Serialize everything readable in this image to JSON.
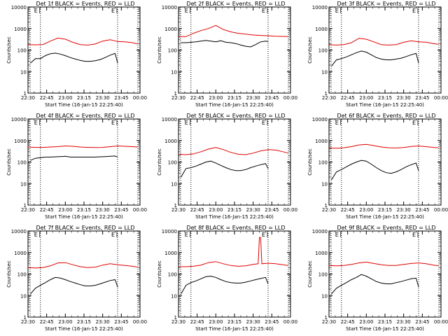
{
  "shared": {
    "ylabel": "Counts/sec",
    "xlabel": "Start Time (16-Jan-15 22:25:40)",
    "xticks": [
      "22:30",
      "22:45",
      "23:00",
      "23:15",
      "23:30",
      "23:45",
      "00:00"
    ],
    "yticks": [
      "1",
      "10",
      "100",
      "1000",
      "10000"
    ],
    "flag_label": "E",
    "colors": {
      "events": "#000000",
      "lld": "#e00000",
      "axes": "#000000"
    }
  },
  "chart_data": [
    {
      "type": "line",
      "title": "Det 1f BLACK = Events, RED = LLD",
      "x_unit": "minutes after 22:30",
      "xlim": [
        0,
        90
      ],
      "ylim": [
        1,
        10000
      ],
      "yscale": "log",
      "markers": [
        10,
        72
      ],
      "series": [
        {
          "name": "Events",
          "x": [
            2,
            6,
            10,
            14,
            18,
            22,
            26,
            30,
            34,
            38,
            42,
            46,
            50,
            54,
            58,
            62,
            66,
            70,
            72
          ],
          "y": [
            25,
            40,
            40,
            55,
            68,
            72,
            65,
            55,
            45,
            38,
            33,
            30,
            30,
            32,
            36,
            45,
            58,
            70,
            25
          ]
        },
        {
          "name": "LLD",
          "x": [
            0,
            6,
            12,
            18,
            24,
            30,
            36,
            42,
            48,
            54,
            60,
            66,
            72,
            78,
            84,
            88
          ],
          "y": [
            180,
            175,
            180,
            260,
            360,
            320,
            230,
            180,
            170,
            190,
            260,
            300,
            250,
            240,
            220,
            195
          ]
        }
      ]
    },
    {
      "type": "line",
      "title": "Det 2f BLACK = Events, RED = LLD",
      "x_unit": "minutes after 22:30",
      "xlim": [
        0,
        90
      ],
      "ylim": [
        1,
        10000
      ],
      "yscale": "log",
      "markers": [
        10,
        72
      ],
      "series": [
        {
          "name": "Events",
          "x": [
            2,
            6,
            10,
            14,
            18,
            22,
            26,
            30,
            34,
            38,
            42,
            46,
            50,
            54,
            58,
            62,
            66,
            70,
            72
          ],
          "y": [
            220,
            220,
            230,
            240,
            260,
            280,
            260,
            240,
            270,
            230,
            220,
            200,
            170,
            150,
            140,
            180,
            240,
            260,
            250
          ]
        },
        {
          "name": "LLD",
          "x": [
            0,
            6,
            12,
            18,
            24,
            30,
            36,
            42,
            48,
            54,
            60,
            66,
            72,
            78,
            84,
            88
          ],
          "y": [
            420,
            420,
            600,
            800,
            1000,
            1400,
            900,
            700,
            600,
            550,
            500,
            480,
            460,
            440,
            430,
            420
          ]
        }
      ]
    },
    {
      "type": "line",
      "title": "Det 3f BLACK = Events, RED = LLD",
      "x_unit": "minutes after 22:30",
      "xlim": [
        0,
        90
      ],
      "ylim": [
        1,
        10000
      ],
      "yscale": "log",
      "markers": [
        10,
        72
      ],
      "series": [
        {
          "name": "Events",
          "x": [
            2,
            6,
            10,
            14,
            18,
            22,
            26,
            30,
            34,
            38,
            42,
            46,
            50,
            54,
            58,
            62,
            66,
            70,
            72
          ],
          "y": [
            18,
            35,
            40,
            48,
            60,
            75,
            90,
            80,
            60,
            45,
            38,
            35,
            35,
            38,
            42,
            50,
            60,
            70,
            25
          ]
        },
        {
          "name": "LLD",
          "x": [
            0,
            6,
            12,
            18,
            24,
            30,
            36,
            42,
            48,
            54,
            60,
            66,
            72,
            78,
            84,
            88
          ],
          "y": [
            180,
            170,
            180,
            220,
            350,
            320,
            240,
            180,
            170,
            180,
            230,
            270,
            240,
            230,
            200,
            185
          ]
        }
      ]
    },
    {
      "type": "line",
      "title": "Det 4f BLACK = Events, RED = LLD",
      "x_unit": "minutes after 22:30",
      "xlim": [
        0,
        90
      ],
      "ylim": [
        1,
        10000
      ],
      "yscale": "log",
      "markers": [
        10,
        72
      ],
      "series": [
        {
          "name": "Events",
          "x": [
            2,
            6,
            10,
            14,
            18,
            22,
            26,
            30,
            34,
            38,
            42,
            46,
            50,
            54,
            58,
            62,
            66,
            70,
            72
          ],
          "y": [
            120,
            150,
            160,
            170,
            170,
            175,
            180,
            185,
            170,
            170,
            170,
            170,
            170,
            170,
            175,
            180,
            185,
            190,
            170
          ]
        },
        {
          "name": "LLD",
          "x": [
            0,
            6,
            12,
            18,
            24,
            30,
            36,
            42,
            48,
            54,
            60,
            66,
            72,
            78,
            84,
            88
          ],
          "y": [
            500,
            480,
            480,
            500,
            520,
            560,
            540,
            500,
            480,
            470,
            480,
            520,
            560,
            540,
            520,
            500
          ]
        }
      ]
    },
    {
      "type": "line",
      "title": "Det 5f BLACK = Events, RED = LLD",
      "x_unit": "minutes after 22:30",
      "xlim": [
        0,
        90
      ],
      "ylim": [
        1,
        10000
      ],
      "yscale": "log",
      "markers": [
        10,
        72
      ],
      "series": [
        {
          "name": "Events",
          "x": [
            2,
            6,
            10,
            14,
            18,
            22,
            26,
            30,
            34,
            38,
            42,
            46,
            50,
            54,
            58,
            62,
            66,
            70,
            72
          ],
          "y": [
            20,
            50,
            55,
            65,
            80,
            100,
            110,
            90,
            70,
            55,
            45,
            40,
            40,
            45,
            55,
            65,
            75,
            85,
            50
          ]
        },
        {
          "name": "LLD",
          "x": [
            0,
            6,
            12,
            18,
            24,
            30,
            36,
            42,
            48,
            54,
            60,
            66,
            72,
            78,
            84,
            88
          ],
          "y": [
            230,
            220,
            240,
            300,
            400,
            480,
            380,
            280,
            230,
            220,
            260,
            330,
            380,
            360,
            300,
            260
          ]
        }
      ]
    },
    {
      "type": "line",
      "title": "Det 6f BLACK = Events, RED = LLD",
      "x_unit": "minutes after 22:30",
      "xlim": [
        0,
        90
      ],
      "ylim": [
        1,
        10000
      ],
      "yscale": "log",
      "markers": [
        10,
        72
      ],
      "series": [
        {
          "name": "Events",
          "x": [
            2,
            6,
            10,
            14,
            18,
            22,
            26,
            30,
            34,
            38,
            42,
            46,
            50,
            54,
            58,
            62,
            66,
            70,
            72
          ],
          "y": [
            15,
            35,
            45,
            60,
            80,
            100,
            120,
            110,
            80,
            55,
            40,
            32,
            30,
            35,
            45,
            60,
            75,
            90,
            40
          ]
        },
        {
          "name": "LLD",
          "x": [
            0,
            6,
            12,
            18,
            24,
            30,
            36,
            42,
            48,
            54,
            60,
            66,
            72,
            78,
            84,
            88
          ],
          "y": [
            450,
            440,
            460,
            520,
            620,
            660,
            580,
            500,
            460,
            450,
            470,
            530,
            560,
            520,
            480,
            460
          ]
        }
      ]
    },
    {
      "type": "line",
      "title": "Det 7f BLACK = Events, RED = LLD",
      "x_unit": "minutes after 22:30",
      "xlim": [
        0,
        90
      ],
      "ylim": [
        1,
        10000
      ],
      "yscale": "log",
      "markers": [
        10,
        72
      ],
      "series": [
        {
          "name": "Events",
          "x": [
            2,
            6,
            10,
            14,
            18,
            22,
            26,
            30,
            34,
            38,
            42,
            46,
            50,
            54,
            58,
            62,
            66,
            70,
            72
          ],
          "y": [
            12,
            22,
            30,
            40,
            55,
            70,
            65,
            55,
            45,
            38,
            32,
            28,
            28,
            30,
            35,
            42,
            50,
            55,
            25
          ]
        },
        {
          "name": "LLD",
          "x": [
            0,
            6,
            12,
            18,
            24,
            30,
            36,
            42,
            48,
            54,
            60,
            66,
            72,
            78,
            84,
            88
          ],
          "y": [
            200,
            190,
            200,
            240,
            330,
            340,
            270,
            220,
            200,
            210,
            260,
            300,
            270,
            250,
            230,
            210
          ]
        }
      ]
    },
    {
      "type": "line",
      "title": "Det 8f BLACK = Events, RED = LLD",
      "x_unit": "minutes after 22:30",
      "xlim": [
        0,
        90
      ],
      "ylim": [
        1,
        10000
      ],
      "yscale": "log",
      "markers": [
        10,
        72
      ],
      "series": [
        {
          "name": "Events",
          "x": [
            2,
            6,
            10,
            14,
            18,
            22,
            26,
            30,
            34,
            38,
            42,
            46,
            50,
            54,
            58,
            62,
            66,
            70,
            72
          ],
          "y": [
            12,
            30,
            40,
            48,
            60,
            75,
            80,
            70,
            55,
            45,
            40,
            38,
            38,
            42,
            48,
            55,
            62,
            70,
            35
          ]
        },
        {
          "name": "LLD",
          "x": [
            0,
            6,
            12,
            18,
            24,
            30,
            36,
            42,
            48,
            54,
            60,
            64,
            65,
            66,
            67,
            72,
            78,
            84,
            88
          ],
          "y": [
            220,
            220,
            230,
            260,
            340,
            380,
            300,
            250,
            230,
            240,
            280,
            300,
            5000,
            5000,
            300,
            320,
            300,
            270,
            250
          ]
        }
      ]
    },
    {
      "type": "line",
      "title": "Det 9f BLACK = Events, RED = LLD",
      "x_unit": "minutes after 22:30",
      "xlim": [
        0,
        90
      ],
      "ylim": [
        1,
        10000
      ],
      "yscale": "log",
      "markers": [
        10,
        72
      ],
      "series": [
        {
          "name": "Events",
          "x": [
            2,
            6,
            10,
            14,
            18,
            22,
            26,
            30,
            34,
            38,
            42,
            46,
            50,
            54,
            58,
            62,
            66,
            70,
            72
          ],
          "y": [
            12,
            22,
            30,
            40,
            55,
            70,
            95,
            80,
            60,
            45,
            38,
            35,
            35,
            40,
            45,
            52,
            60,
            65,
            25
          ]
        },
        {
          "name": "LLD",
          "x": [
            0,
            6,
            12,
            18,
            24,
            30,
            36,
            42,
            48,
            54,
            60,
            66,
            72,
            78,
            84,
            88
          ],
          "y": [
            250,
            240,
            250,
            280,
            330,
            360,
            310,
            270,
            250,
            250,
            280,
            310,
            330,
            300,
            260,
            240
          ]
        }
      ]
    }
  ]
}
